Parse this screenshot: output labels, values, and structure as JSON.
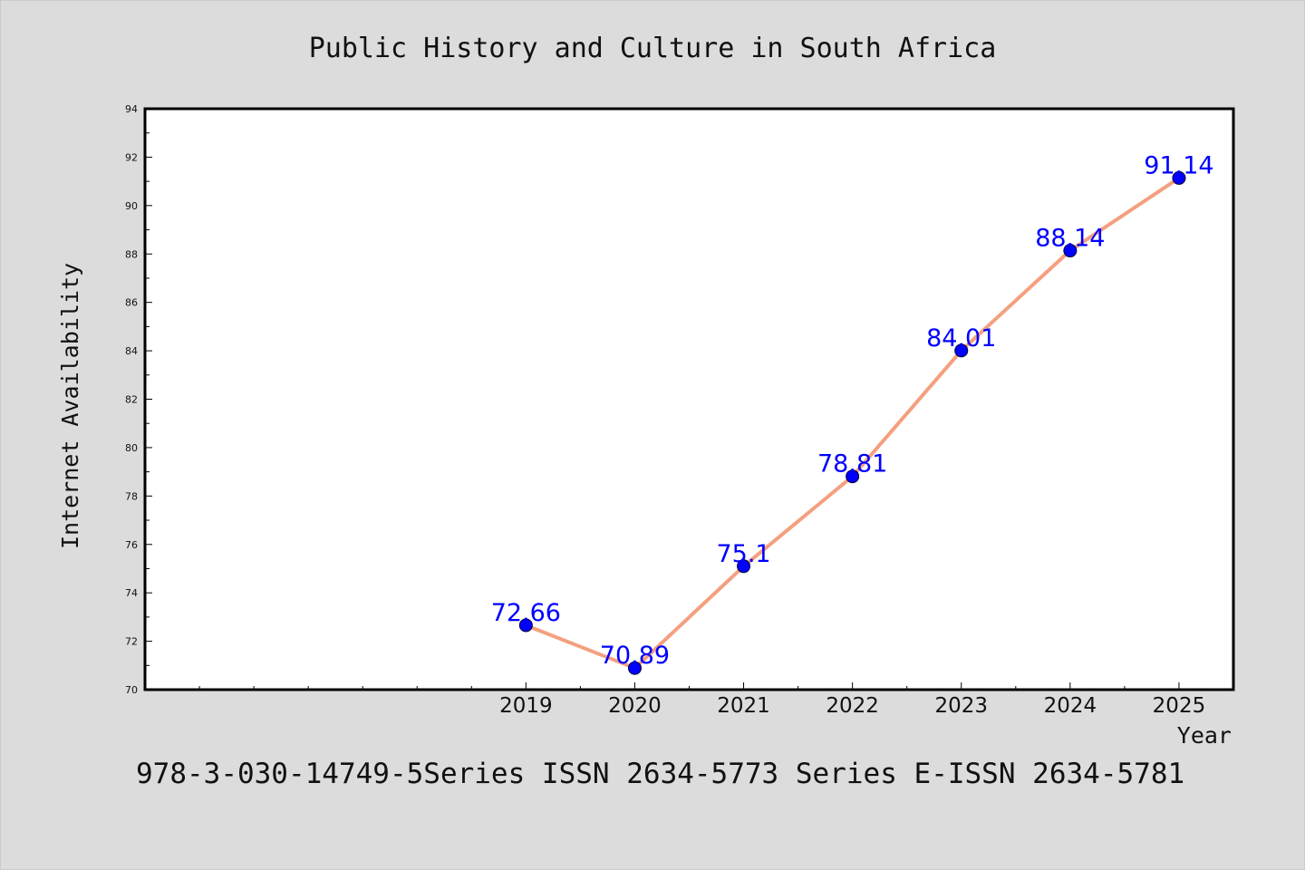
{
  "chart_data": {
    "type": "line",
    "title": "Public History and Culture in South Africa",
    "xlabel": "Year",
    "ylabel": "Internet Availability",
    "footer": "978-3-030-14749-5Series ISSN 2634-5773 Series E-ISSN 2634-5781",
    "x": [
      2019,
      2020,
      2021,
      2022,
      2023,
      2024,
      2025
    ],
    "values": [
      72.66,
      70.89,
      75.1,
      78.81,
      84.01,
      88.14,
      91.14
    ],
    "value_labels": [
      "72.66",
      "70.89",
      "75.1",
      "78.81",
      "84.01",
      "88.14",
      "91.14"
    ],
    "x_tick_labels": [
      "2019",
      "2020",
      "2021",
      "2022",
      "2023",
      "2024",
      "2025"
    ],
    "y_ticks": [
      70,
      72,
      74,
      76,
      78,
      80,
      82,
      84,
      86,
      88,
      90,
      92,
      94
    ],
    "y_tick_labels": [
      "70",
      "72",
      "74",
      "76",
      "78",
      "80",
      "82",
      "84",
      "86",
      "88",
      "90",
      "92",
      "94"
    ],
    "xlim": [
      2015.5,
      2025.5
    ],
    "ylim": [
      70,
      94
    ],
    "grid": false,
    "legend": "none",
    "colors": {
      "background": "#dcdcdc",
      "plot_background": "#ffffff",
      "line": "#f4a07f",
      "marker": "#0000ff",
      "value_label": "#0000ff",
      "text": "#111111"
    }
  }
}
